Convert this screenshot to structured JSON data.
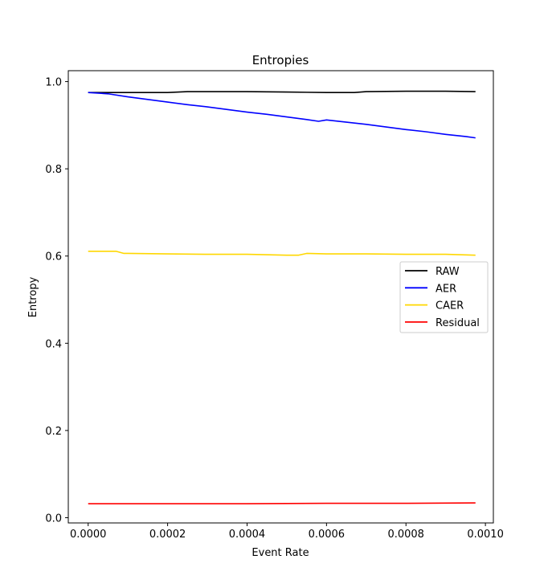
{
  "chart_data": {
    "type": "line",
    "title": "Entropies",
    "xlabel": "Event Rate",
    "ylabel": "Entropy",
    "xlim": [
      -5e-05,
      0.00102
    ],
    "ylim": [
      -0.012,
      1.025
    ],
    "xticks": [
      0.0,
      0.0002,
      0.0004,
      0.0006,
      0.0008,
      0.001
    ],
    "xtick_labels": [
      "0.0000",
      "0.0002",
      "0.0004",
      "0.0006",
      "0.0008",
      "0.0010"
    ],
    "yticks": [
      0.0,
      0.2,
      0.4,
      0.6,
      0.8,
      1.0
    ],
    "ytick_labels": [
      "0.0",
      "0.2",
      "0.4",
      "0.6",
      "0.8",
      "1.0"
    ],
    "grid": false,
    "legend_position": "center-right",
    "series": [
      {
        "name": "RAW",
        "color": "#000000",
        "x": [
          0.0,
          0.0001,
          0.0002,
          0.00025,
          0.0003,
          0.0004,
          0.0005,
          0.0006,
          0.00067,
          0.0007,
          0.0008,
          0.0009,
          0.000975
        ],
        "y": [
          0.975,
          0.975,
          0.975,
          0.977,
          0.977,
          0.977,
          0.976,
          0.975,
          0.975,
          0.977,
          0.978,
          0.978,
          0.977
        ]
      },
      {
        "name": "AER",
        "color": "#0000ff",
        "x": [
          0.0,
          5e-05,
          0.0001,
          0.00015,
          0.0002,
          0.00025,
          0.0003,
          0.00035,
          0.0004,
          0.00045,
          0.0005,
          0.00055,
          0.00058,
          0.0006,
          0.00065,
          0.0007,
          0.00075,
          0.0008,
          0.00085,
          0.0009,
          0.00095,
          0.000975
        ],
        "y": [
          0.975,
          0.972,
          0.965,
          0.959,
          0.953,
          0.947,
          0.942,
          0.936,
          0.93,
          0.925,
          0.919,
          0.913,
          0.909,
          0.912,
          0.907,
          0.902,
          0.896,
          0.89,
          0.885,
          0.879,
          0.874,
          0.871
        ]
      },
      {
        "name": "CAER",
        "color": "#ffd700",
        "x": [
          0.0,
          7e-05,
          9e-05,
          0.0001,
          0.0002,
          0.0003,
          0.0004,
          0.0005,
          0.00053,
          0.00055,
          0.0006,
          0.0007,
          0.0008,
          0.0009,
          0.000975
        ],
        "y": [
          0.611,
          0.611,
          0.606,
          0.606,
          0.605,
          0.604,
          0.604,
          0.602,
          0.602,
          0.606,
          0.605,
          0.605,
          0.604,
          0.604,
          0.602
        ]
      },
      {
        "name": "Residual",
        "color": "#ff0000",
        "x": [
          0.0,
          0.0002,
          0.0004,
          0.0006,
          0.0008,
          0.000975
        ],
        "y": [
          0.032,
          0.032,
          0.032,
          0.033,
          0.033,
          0.034
        ]
      }
    ]
  }
}
